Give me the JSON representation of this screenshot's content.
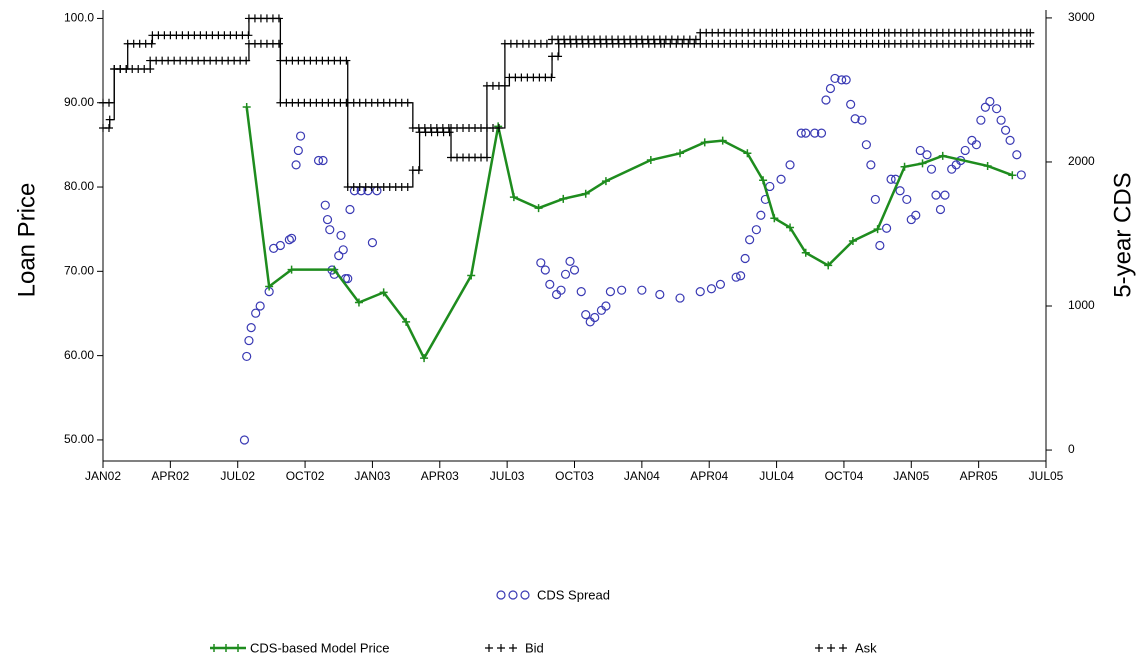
{
  "chart_data": {
    "type": "line",
    "y_label": "Loan Price",
    "y2_label": "5-year CDS",
    "xlim": [
      0,
      42
    ],
    "xticks": [
      {
        "value": 0,
        "label": "JAN02"
      },
      {
        "value": 3,
        "label": "APR02"
      },
      {
        "value": 6,
        "label": "JUL02"
      },
      {
        "value": 9,
        "label": "OCT02"
      },
      {
        "value": 12,
        "label": "JAN03"
      },
      {
        "value": 15,
        "label": "APR03"
      },
      {
        "value": 18,
        "label": "JUL03"
      },
      {
        "value": 21,
        "label": "OCT03"
      },
      {
        "value": 24,
        "label": "JAN04"
      },
      {
        "value": 27,
        "label": "APR04"
      },
      {
        "value": 30,
        "label": "JUL04"
      },
      {
        "value": 33,
        "label": "OCT04"
      },
      {
        "value": 36,
        "label": "JAN05"
      },
      {
        "value": 39,
        "label": "APR05"
      },
      {
        "value": 42,
        "label": "JUL05"
      }
    ],
    "ylim": [
      47.5,
      101
    ],
    "yticks": [
      {
        "value": 50,
        "label": "50.00"
      },
      {
        "value": 60,
        "label": "60.00"
      },
      {
        "value": 70,
        "label": "70.00"
      },
      {
        "value": 80,
        "label": "80.00"
      },
      {
        "value": 90,
        "label": "90.00"
      },
      {
        "value": 100,
        "label": "100.0"
      }
    ],
    "y2lim": [
      -76,
      3055
    ],
    "y2ticks": [
      0,
      1000,
      2000,
      3000
    ],
    "series": [
      {
        "name": "CDS Spread",
        "style": "scatter",
        "axis": "y2",
        "color": "#3a3ab4",
        "x": [
          6.3,
          6.4,
          6.5,
          6.6,
          6.8,
          7.0,
          7.4,
          7.6,
          7.9,
          8.3,
          8.4,
          8.6,
          8.7,
          8.8,
          9.6,
          9.8,
          9.9,
          10.0,
          10.1,
          10.2,
          10.3,
          10.5,
          10.6,
          10.7,
          10.8,
          10.9,
          11.0,
          11.2,
          11.5,
          11.8,
          12.0,
          12.2,
          19.5,
          19.7,
          19.9,
          20.2,
          20.4,
          20.6,
          20.8,
          21.0,
          21.3,
          21.5,
          21.7,
          21.9,
          22.2,
          22.4,
          22.6,
          23.1,
          24.0,
          24.8,
          25.7,
          26.6,
          27.1,
          27.5,
          28.2,
          28.4,
          28.6,
          28.8,
          29.1,
          29.3,
          29.5,
          29.7,
          30.2,
          30.6,
          31.1,
          31.3,
          31.7,
          32.0,
          32.2,
          32.4,
          32.6,
          32.9,
          33.1,
          33.3,
          33.5,
          33.8,
          34.0,
          34.2,
          34.4,
          34.6,
          34.9,
          35.1,
          35.3,
          35.5,
          35.8,
          36.0,
          36.2,
          36.4,
          36.7,
          36.9,
          37.1,
          37.3,
          37.5,
          37.8,
          38.0,
          38.2,
          38.4,
          38.7,
          38.9,
          39.1,
          39.3,
          39.5,
          39.8,
          40.0,
          40.2,
          40.4,
          40.7,
          40.9
        ],
        "values": [
          70,
          650,
          760,
          850,
          950,
          1000,
          1100,
          1400,
          1420,
          1460,
          1470,
          1980,
          2080,
          2180,
          2010,
          2010,
          1700,
          1600,
          1530,
          1250,
          1220,
          1350,
          1490,
          1390,
          1190,
          1190,
          1670,
          1800,
          1800,
          1800,
          1440,
          1800,
          1300,
          1250,
          1150,
          1080,
          1110,
          1220,
          1310,
          1250,
          1100,
          940,
          890,
          920,
          970,
          1000,
          1100,
          1110,
          1110,
          1080,
          1055,
          1100,
          1120,
          1150,
          1200,
          1210,
          1330,
          1460,
          1530,
          1630,
          1740,
          1830,
          1880,
          1980,
          2200,
          2200,
          2200,
          2200,
          2430,
          2510,
          2580,
          2570,
          2570,
          2400,
          2300,
          2290,
          2120,
          1980,
          1740,
          1420,
          1540,
          1880,
          1880,
          1800,
          1740,
          1600,
          1630,
          2080,
          2050,
          1950,
          1770,
          1670,
          1770,
          1950,
          1980,
          2010,
          2080,
          2150,
          2120,
          2290,
          2380,
          2420,
          2370,
          2290,
          2220,
          2150,
          2050,
          1910
        ]
      },
      {
        "name": "CDS-based Model Price",
        "style": "line",
        "color": "#1e8c1e",
        "x": [
          6.4,
          7.4,
          8.4,
          10.3,
          11.4,
          12.5,
          13.5,
          14.3,
          16.4,
          17.6,
          18.3,
          19.4,
          20.5,
          21.5,
          22.4,
          24.4,
          25.7,
          26.8,
          27.6,
          28.7,
          29.4,
          29.9,
          30.6,
          31.3,
          32.3,
          33.4,
          34.5,
          35.7,
          36.5,
          37.4,
          39.4,
          40.5
        ],
        "values": [
          89.5,
          68.2,
          70.2,
          70.2,
          66.3,
          67.5,
          64,
          59.7,
          69.5,
          87.2,
          78.8,
          77.5,
          78.6,
          79.2,
          80.7,
          83.2,
          84,
          85.3,
          85.5,
          84,
          80.8,
          76.3,
          75.2,
          72.2,
          70.7,
          73.6,
          75,
          82.4,
          82.8,
          83.7,
          82.5,
          81.4
        ]
      },
      {
        "name": "Bid",
        "style": "step",
        "color": "#000000",
        "x": [
          0,
          0.3,
          0.5,
          2.1,
          6.5,
          7.9,
          10.9,
          13.8,
          14.1,
          15.5,
          17.1,
          18.1,
          20,
          20.3,
          25,
          30,
          35,
          41.3
        ],
        "values": [
          87,
          88,
          94,
          95,
          97,
          90,
          80,
          82,
          86.5,
          83.5,
          92,
          93,
          95.5,
          97,
          97,
          97,
          97,
          97
        ]
      },
      {
        "name": "Ask",
        "style": "step",
        "color": "#000000",
        "x": [
          0,
          0.5,
          1.1,
          2.2,
          6.5,
          7.9,
          10.9,
          13.8,
          15.5,
          17.9,
          20,
          24,
          26.6,
          30,
          35,
          41.3
        ],
        "values": [
          90,
          94,
          97,
          98,
          100,
          95,
          90,
          87,
          87,
          97,
          97.5,
          97.5,
          98.3,
          98.3,
          98.3,
          98.3
        ]
      }
    ]
  }
}
